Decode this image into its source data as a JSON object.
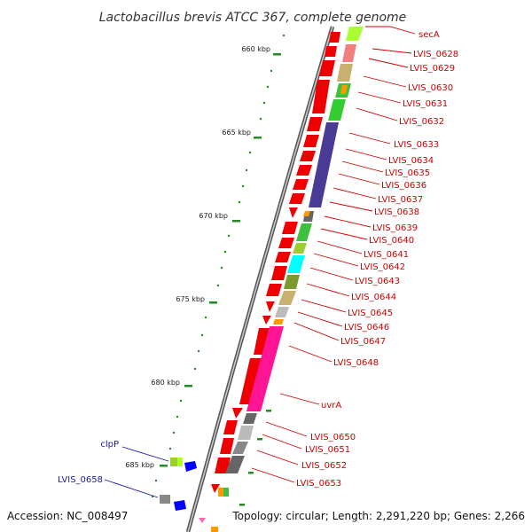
{
  "title": "Lactobacillus brevis ATCC 367, complete genome",
  "footer": {
    "accession": "Accession: NC_008497",
    "topology": "Topology: circular; Length: 2,291,220 bp; Genes: 2,266"
  },
  "ticks": [
    "660 kbp",
    "665 kbp",
    "670 kbp",
    "675 kbp",
    "680 kbp",
    "685 kbp"
  ],
  "labels_right": [
    "secA",
    "LVIS_0628",
    "LVIS_0629",
    "LVIS_0630",
    "LVIS_0631",
    "LVIS_0632",
    "LVIS_0633",
    "LVIS_0634",
    "LVIS_0635",
    "LVIS_0636",
    "LVIS_0637",
    "LVIS_0638",
    "LVIS_0639",
    "LVIS_0640",
    "LVIS_0641",
    "LVIS_0642",
    "LVIS_0643",
    "LVIS_0644",
    "LVIS_0645",
    "LVIS_0646",
    "LVIS_0647",
    "LVIS_0648",
    "uvrA",
    "LVIS_0650",
    "LVIS_0651",
    "LVIS_0652",
    "LVIS_0653"
  ],
  "labels_left": [
    "clpP",
    "LVIS_0658"
  ],
  "colors": {
    "forward_gene": "#ee0000",
    "label_red": "#cc0000",
    "label_blue": "#1a1aa6",
    "backbone": "#888888",
    "tick_dots": "#228b22"
  }
}
